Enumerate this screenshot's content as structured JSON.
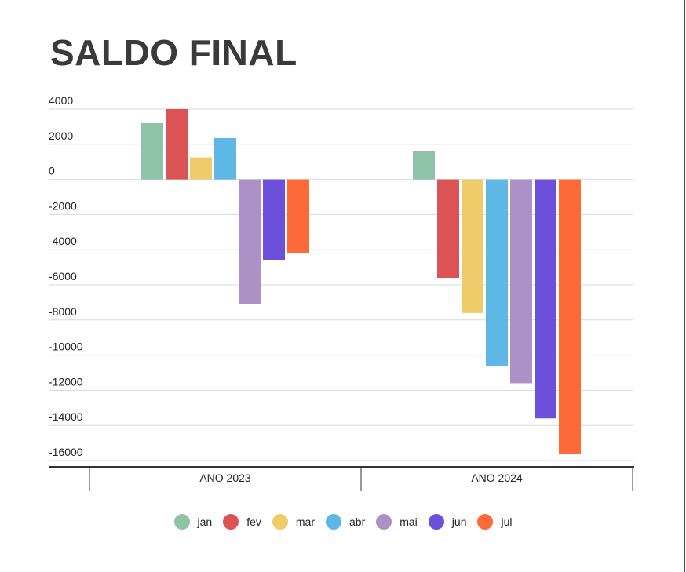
{
  "title": "SALDO FINAL",
  "chart_data": {
    "type": "bar",
    "categories": [
      "ANO 2023",
      "ANO 2024"
    ],
    "series": [
      {
        "name": "jan",
        "color": "#8ec3a7",
        "values": [
          3200,
          1600
        ]
      },
      {
        "name": "fev",
        "color": "#dc5356",
        "values": [
          4000,
          -5600
        ]
      },
      {
        "name": "mar",
        "color": "#f0cb69",
        "values": [
          1250,
          -7600
        ]
      },
      {
        "name": "abr",
        "color": "#5fb7e5",
        "values": [
          2350,
          -10600
        ]
      },
      {
        "name": "mai",
        "color": "#ab91c5",
        "values": [
          -7100,
          -11600
        ]
      },
      {
        "name": "jun",
        "color": "#6c50db",
        "values": [
          -4600,
          -13600
        ]
      },
      {
        "name": "jul",
        "color": "#fd6a37",
        "values": [
          -4200,
          -15600
        ]
      }
    ],
    "yticks": [
      4000,
      2000,
      0,
      -2000,
      -4000,
      -6000,
      -8000,
      -10000,
      -12000,
      -14000,
      -16000
    ],
    "ylim": [
      -16000,
      4000
    ],
    "grid": true,
    "legend_position": "bottom"
  }
}
